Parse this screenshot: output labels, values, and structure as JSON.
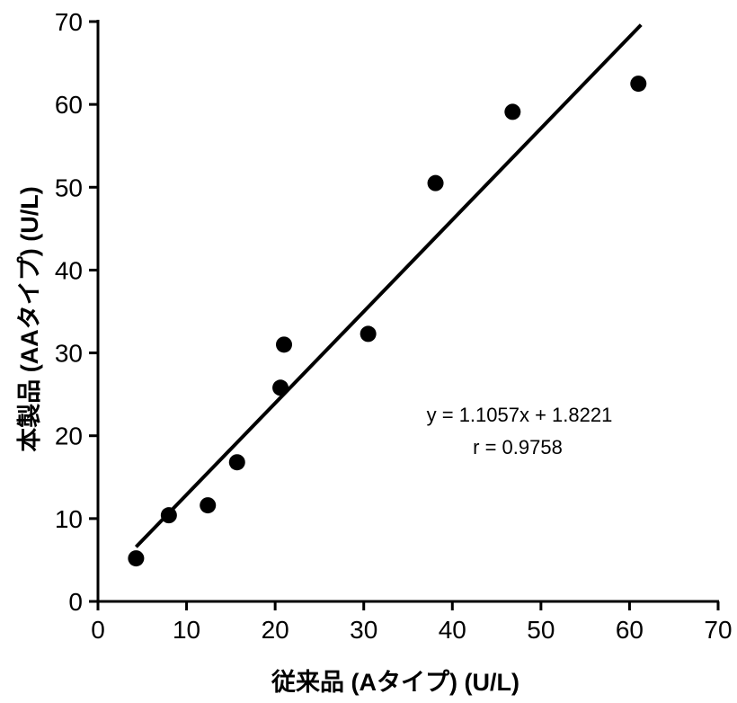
{
  "chart_data": {
    "type": "scatter",
    "title": "",
    "xlabel": "従来品 (Aタイプ) (U/L)",
    "ylabel": "本製品 (AAタイプ) (U/L)",
    "xlim": [
      0,
      70
    ],
    "ylim": [
      0,
      70
    ],
    "xticks": [
      0,
      10,
      20,
      30,
      40,
      50,
      60,
      70
    ],
    "yticks": [
      0,
      10,
      20,
      30,
      40,
      50,
      60,
      70
    ],
    "grid": false,
    "legend": "none",
    "marker_color": "#000000",
    "line_color": "#000000",
    "points": [
      {
        "x": 4.3,
        "y": 5.2
      },
      {
        "x": 8.0,
        "y": 10.4
      },
      {
        "x": 12.4,
        "y": 11.6
      },
      {
        "x": 15.7,
        "y": 16.8
      },
      {
        "x": 20.6,
        "y": 25.8
      },
      {
        "x": 21.0,
        "y": 31.0
      },
      {
        "x": 30.5,
        "y": 32.3
      },
      {
        "x": 38.1,
        "y": 50.5
      },
      {
        "x": 46.8,
        "y": 59.1
      },
      {
        "x": 61.0,
        "y": 62.5
      }
    ],
    "trendline": {
      "slope": 1.1057,
      "intercept": 1.8221,
      "x_start": 4.3,
      "x_end": 61.3,
      "equation_label": "y = 1.1057x + 1.8221",
      "r_label": "r = 0.9758"
    }
  }
}
